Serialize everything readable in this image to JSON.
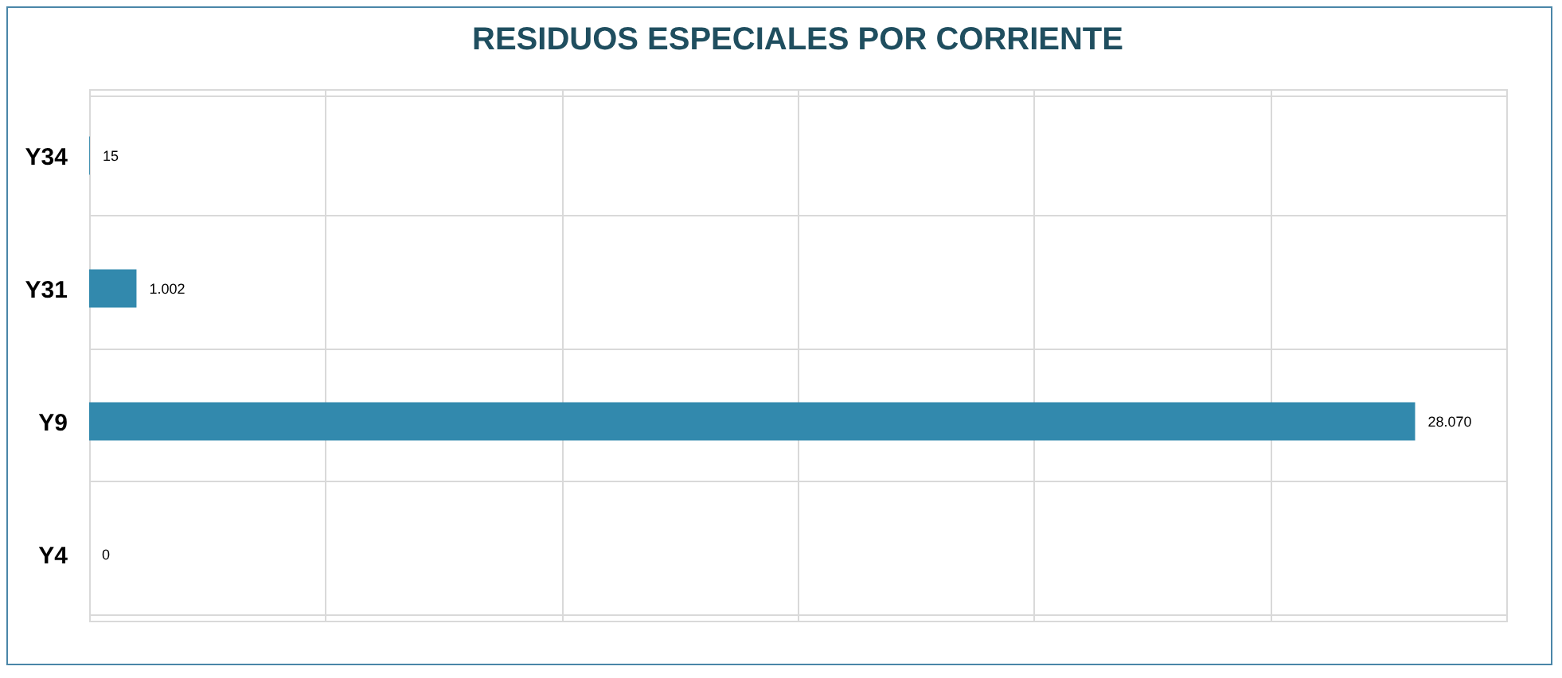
{
  "chart_data": {
    "type": "bar",
    "orientation": "horizontal",
    "title": "RESIDUOS ESPECIALES POR CORRIENTE",
    "categories": [
      "Y34",
      "Y31",
      "Y9",
      "Y4"
    ],
    "values": [
      15,
      1002,
      28070,
      0
    ],
    "value_labels": [
      "15",
      "1.002",
      "28.070",
      "0"
    ],
    "color": "#3289ad",
    "xlim": [
      0,
      30000
    ],
    "xticks": [
      {
        "value": 0,
        "label": null
      },
      {
        "value": 5000,
        "label": null
      },
      {
        "value": 10000,
        "label": null
      },
      {
        "value": 15000,
        "label": null
      },
      {
        "value": 20000,
        "label": null
      },
      {
        "value": 25000,
        "label": null
      },
      {
        "value": 30000,
        "label": null
      }
    ],
    "tick_labels": "y",
    "grid": true
  }
}
